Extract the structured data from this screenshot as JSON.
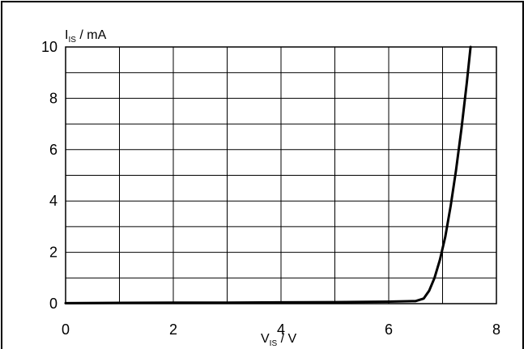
{
  "chart_data": {
    "type": "line",
    "title": "",
    "xlabel": {
      "main": "V",
      "sub": "IS",
      "unit": " / V"
    },
    "ylabel": {
      "main": "I",
      "sub": "IS",
      "unit": " / mA"
    },
    "xlim": [
      0,
      8
    ],
    "ylim": [
      0,
      10
    ],
    "x_ticks": [
      0,
      2,
      4,
      6,
      8
    ],
    "y_ticks": [
      0,
      2,
      4,
      6,
      8,
      10
    ],
    "x_grid_step": 1,
    "y_grid_step": 1,
    "grid": true,
    "colors": {
      "line": "#000000",
      "grid": "#000000",
      "background": "#ffffff"
    },
    "series": [
      {
        "x": [
          0,
          1,
          2,
          3,
          4,
          5,
          6,
          6.5,
          6.65,
          6.75,
          6.85,
          6.95,
          7.05,
          7.15,
          7.25,
          7.35,
          7.45,
          7.52
        ],
        "y": [
          0.02,
          0.03,
          0.04,
          0.04,
          0.05,
          0.06,
          0.08,
          0.1,
          0.2,
          0.5,
          1.0,
          1.7,
          2.6,
          3.8,
          5.2,
          6.8,
          8.6,
          10
        ]
      }
    ]
  }
}
